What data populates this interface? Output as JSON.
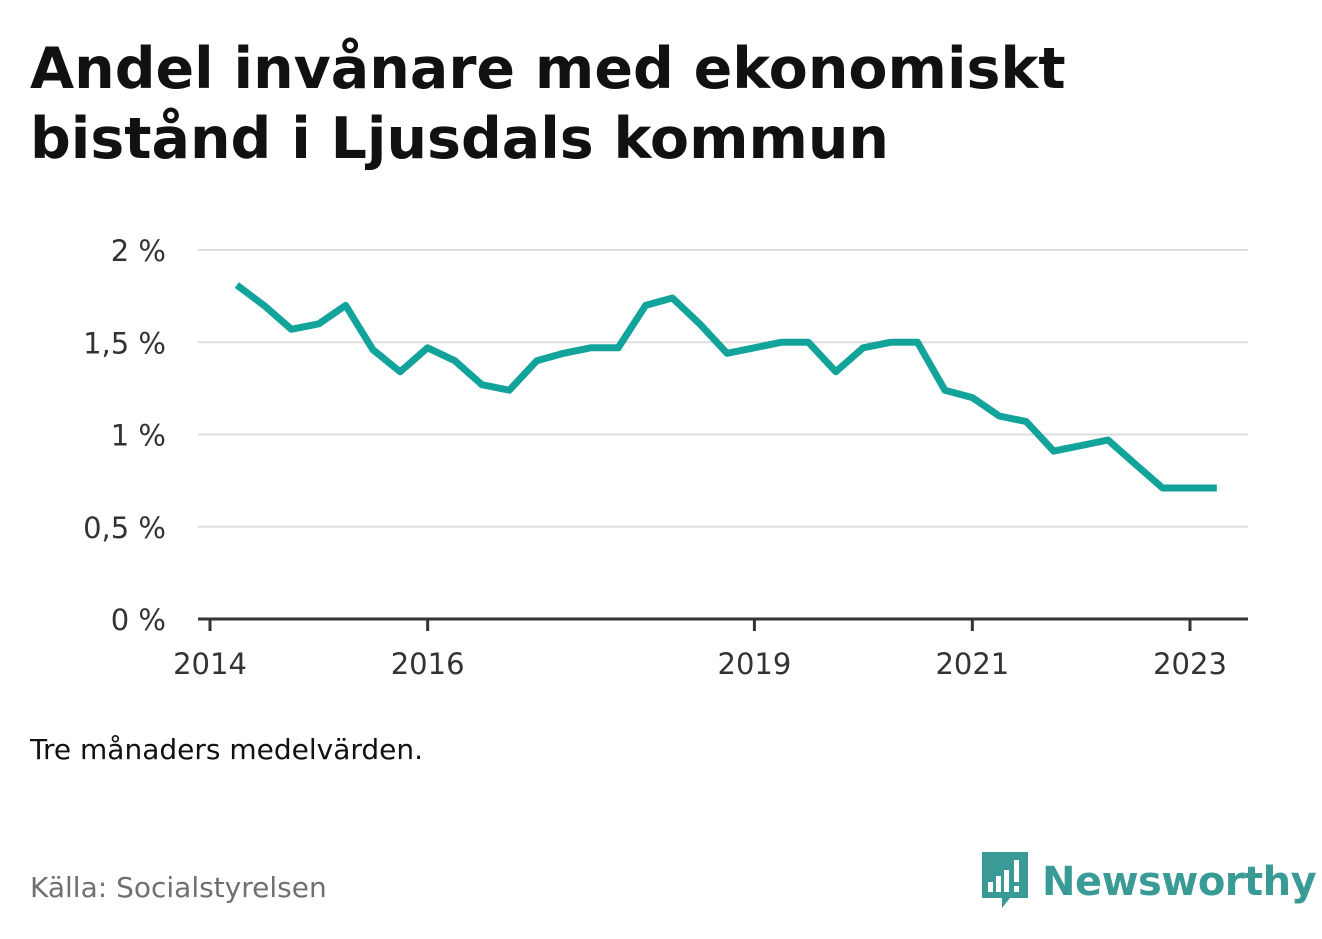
{
  "title": "Andel invånare med ekonomiskt bistånd i Ljusdals kommun",
  "note": "Tre månaders medelvärden.",
  "source": "Källa: Socialstyrelsen",
  "brand": {
    "name": "Newsworthy",
    "icon": "newsworthy-logo-icon",
    "color": "#3a9b96"
  },
  "colors": {
    "line": "#12a39a",
    "grid": "#dddddd",
    "axis": "#333333",
    "text": "#333333"
  },
  "chart_data": {
    "type": "line",
    "title": "Andel invånare med ekonomiskt bistånd i Ljusdals kommun",
    "xlabel": "",
    "ylabel": "",
    "ylim": [
      0,
      2
    ],
    "yticks": [
      {
        "value": 0,
        "label": "0 %"
      },
      {
        "value": 0.5,
        "label": "0,5 %"
      },
      {
        "value": 1,
        "label": "1 %"
      },
      {
        "value": 1.5,
        "label": "1,5 %"
      },
      {
        "value": 2,
        "label": "2 %"
      }
    ],
    "xlim": [
      "2014-01-01",
      "2023-07-01"
    ],
    "xticks": [
      {
        "value": "2014-01-01",
        "label": "2014"
      },
      {
        "value": "2016-01-01",
        "label": "2016"
      },
      {
        "value": "2019-01-01",
        "label": "2019"
      },
      {
        "value": "2021-01-01",
        "label": "2021"
      },
      {
        "value": "2023-01-01",
        "label": "2023"
      }
    ],
    "grid": true,
    "legend": "none",
    "series": [
      {
        "x": [
          "2014-04-01",
          "2014-07-01",
          "2014-10-01",
          "2015-01-01",
          "2015-04-01",
          "2015-07-01",
          "2015-10-01",
          "2016-01-01",
          "2016-04-01",
          "2016-07-01",
          "2016-10-01",
          "2017-01-01",
          "2017-04-01",
          "2017-07-01",
          "2017-10-01",
          "2018-01-01",
          "2018-04-01",
          "2018-07-01",
          "2018-10-01",
          "2019-01-01",
          "2019-04-01",
          "2019-07-01",
          "2019-10-01",
          "2020-01-01",
          "2020-04-01",
          "2020-07-01",
          "2020-10-01",
          "2021-01-01",
          "2021-04-01",
          "2021-07-01",
          "2021-10-01",
          "2022-01-01",
          "2022-04-01",
          "2022-07-01",
          "2022-10-01",
          "2023-01-01",
          "2023-04-01"
        ],
        "values": [
          1.81,
          1.7,
          1.57,
          1.6,
          1.7,
          1.46,
          1.34,
          1.47,
          1.4,
          1.27,
          1.24,
          1.4,
          1.44,
          1.47,
          1.47,
          1.7,
          1.74,
          1.6,
          1.44,
          1.47,
          1.5,
          1.5,
          1.34,
          1.47,
          1.5,
          1.5,
          1.24,
          1.2,
          1.1,
          1.07,
          0.91,
          0.94,
          0.97,
          0.84,
          0.71,
          0.71,
          0.71
        ]
      }
    ]
  }
}
